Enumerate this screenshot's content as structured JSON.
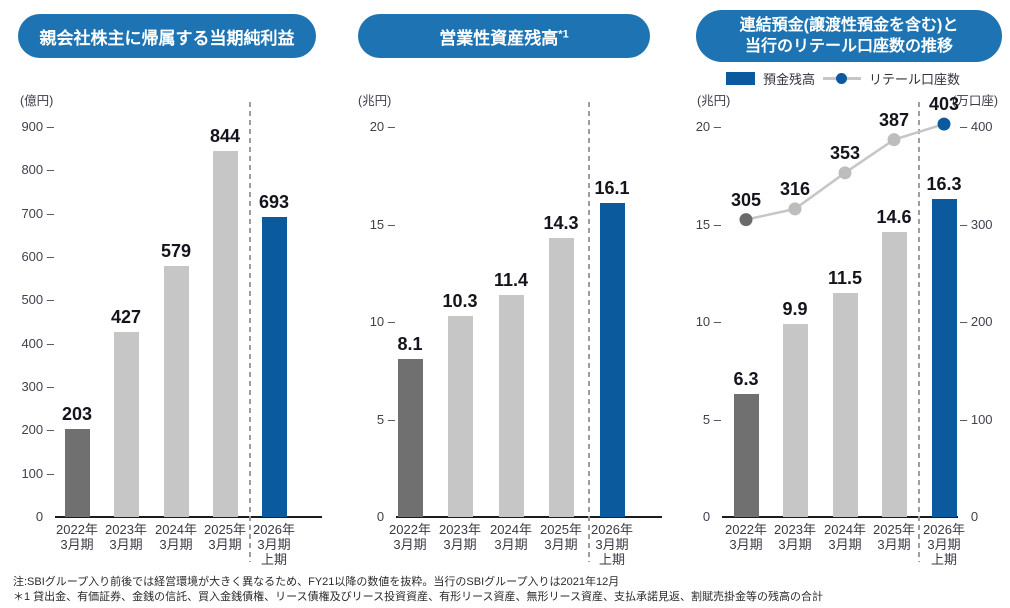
{
  "colors": {
    "pill_blue": "#1e74b2",
    "bar_blue": "#0a5a9d",
    "bar_dark_gray": "#707070",
    "bar_light_gray": "#c6c6c6",
    "line_gray": "#c6c6c6",
    "dot_dark_gray": "#6b6b6b",
    "dot_light_gray": "#bdbdbd",
    "axis_black": "#1d1d1d",
    "dashed_gray": "#9e9e9e"
  },
  "chart_data": [
    {
      "type": "bar",
      "title": "親会社株主に帰属する当期純利益",
      "unit_left": "(億円)",
      "ylim": [
        0,
        900
      ],
      "yticks": [
        900,
        800,
        700,
        600,
        500,
        400,
        300,
        200,
        100,
        0
      ],
      "categories": [
        [
          "2022年",
          "3月期"
        ],
        [
          "2023年",
          "3月期"
        ],
        [
          "2024年",
          "3月期"
        ],
        [
          "2025年",
          "3月期"
        ],
        [
          "2026年",
          "3月期",
          "上期"
        ]
      ],
      "values": [
        203,
        427,
        579,
        844,
        693
      ],
      "bar_roles": [
        "past",
        "recent",
        "recent",
        "recent",
        "current"
      ],
      "separator_after_category_index": 3
    },
    {
      "type": "bar",
      "title": "営業性資産残高",
      "title_sup": "*1",
      "unit_left": "(兆円)",
      "ylim": [
        0,
        20
      ],
      "yticks": [
        20,
        15,
        10,
        5,
        0
      ],
      "categories": [
        [
          "2022年",
          "3月期"
        ],
        [
          "2023年",
          "3月期"
        ],
        [
          "2024年",
          "3月期"
        ],
        [
          "2025年",
          "3月期"
        ],
        [
          "2026年",
          "3月期",
          "上期"
        ]
      ],
      "values": [
        8.1,
        10.3,
        11.4,
        14.3,
        16.1
      ],
      "bar_roles": [
        "past",
        "recent",
        "recent",
        "recent",
        "current"
      ],
      "separator_after_category_index": 3
    },
    {
      "type": "bar-line",
      "title_lines": [
        "連結預金(譲渡性預金を含む)と",
        "当行のリテール口座数の推移"
      ],
      "legend": [
        {
          "label": "預金残高",
          "marker": "bar"
        },
        {
          "label": "リテール口座数",
          "marker": "line-dot"
        }
      ],
      "unit_left": "(兆円)",
      "unit_right": "(万口座)",
      "ylim_left": [
        0,
        20
      ],
      "yticks_left": [
        20,
        15,
        10,
        5,
        0
      ],
      "ylim_right": [
        0,
        400
      ],
      "yticks_right": [
        400,
        300,
        200,
        100,
        0
      ],
      "categories": [
        [
          "2022年",
          "3月期"
        ],
        [
          "2023年",
          "3月期"
        ],
        [
          "2024年",
          "3月期"
        ],
        [
          "2025年",
          "3月期"
        ],
        [
          "2026年",
          "3月期",
          "上期"
        ]
      ],
      "series": [
        {
          "name": "預金残高",
          "type": "bar",
          "axis": "left",
          "values": [
            6.3,
            9.9,
            11.5,
            14.6,
            16.3
          ]
        },
        {
          "name": "リテール口座数",
          "type": "line",
          "axis": "right",
          "values": [
            305,
            316,
            353,
            387,
            403
          ]
        }
      ],
      "bar_roles": [
        "past",
        "recent",
        "recent",
        "recent",
        "current"
      ],
      "separator_after_category_index": 3
    }
  ],
  "footnotes": {
    "note": "注:SBIグループ入り前後では経営環境が大きく異なるため、FY21以降の数値を抜粋。当行のSBIグループ入りは2021年12月",
    "footnote_1": "＊1 貸出金、有価証券、金銭の信託、買入金銭債権、リース債権及びリース投資資産、有形リース資産、無形リース資産、支払承諾見返、割賦売掛金等の残高の合計"
  }
}
